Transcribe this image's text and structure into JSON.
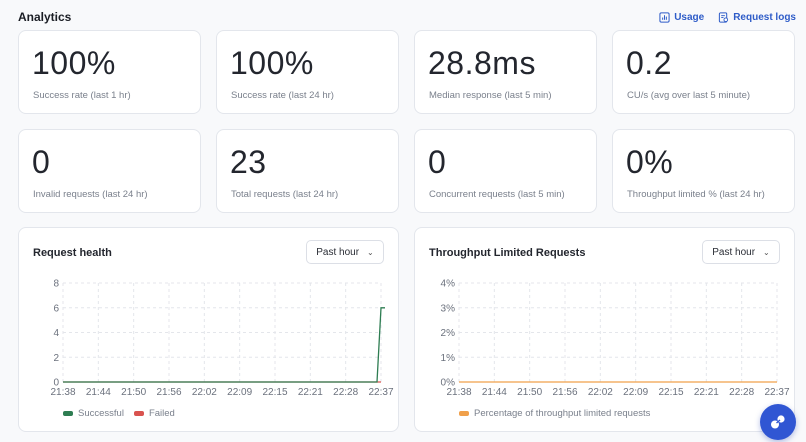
{
  "header": {
    "title": "Analytics",
    "usage_label": "Usage",
    "request_logs_label": "Request logs"
  },
  "stats": [
    {
      "value": "100%",
      "label": "Success rate (last 1 hr)"
    },
    {
      "value": "100%",
      "label": "Success rate (last 24 hr)"
    },
    {
      "value": "28.8ms",
      "label": "Median response (last 5 min)"
    },
    {
      "value": "0.2",
      "label": "CU/s (avg over last 5 minute)"
    },
    {
      "value": "0",
      "label": "Invalid requests (last 24 hr)"
    },
    {
      "value": "23",
      "label": "Total requests (last 24 hr)"
    },
    {
      "value": "0",
      "label": "Concurrent requests (last 5 min)"
    },
    {
      "value": "0%",
      "label": "Throughput limited % (last 24 hr)"
    }
  ],
  "charts": {
    "health": {
      "title": "Request health",
      "range": "Past hour"
    },
    "throughput": {
      "title": "Throughput Limited Requests",
      "range": "Past hour"
    }
  },
  "colors": {
    "successful": "#2e7d52",
    "failed": "#d9534f",
    "throughput": "#f0a04b",
    "accent": "#2e5cc8"
  },
  "chart_data": [
    {
      "type": "line",
      "title": "Request health",
      "x": [
        "21:38",
        "21:44",
        "21:50",
        "21:56",
        "22:02",
        "22:09",
        "22:15",
        "22:21",
        "22:28",
        "22:37"
      ],
      "yticks": [
        "0",
        "2",
        "4",
        "6",
        "8"
      ],
      "ylim": [
        0,
        8
      ],
      "series": [
        {
          "name": "Successful",
          "values": [
            0,
            0,
            0,
            0,
            0,
            0,
            0,
            0,
            0,
            6
          ]
        },
        {
          "name": "Failed",
          "values": [
            0,
            0,
            0,
            0,
            0,
            0,
            0,
            0,
            0,
            0
          ]
        }
      ],
      "grid": true,
      "legend": "bottom-left"
    },
    {
      "type": "line",
      "title": "Throughput Limited Requests",
      "x": [
        "21:38",
        "21:44",
        "21:50",
        "21:56",
        "22:02",
        "22:09",
        "22:15",
        "22:21",
        "22:28",
        "22:37"
      ],
      "yticks": [
        "0%",
        "1%",
        "2%",
        "3%",
        "4%"
      ],
      "ylim": [
        0,
        4
      ],
      "series": [
        {
          "name": "Percentage of throughput limited requests",
          "values": [
            0,
            0,
            0,
            0,
            0,
            0,
            0,
            0,
            0,
            0
          ]
        }
      ],
      "grid": true,
      "legend": "bottom-left"
    }
  ]
}
